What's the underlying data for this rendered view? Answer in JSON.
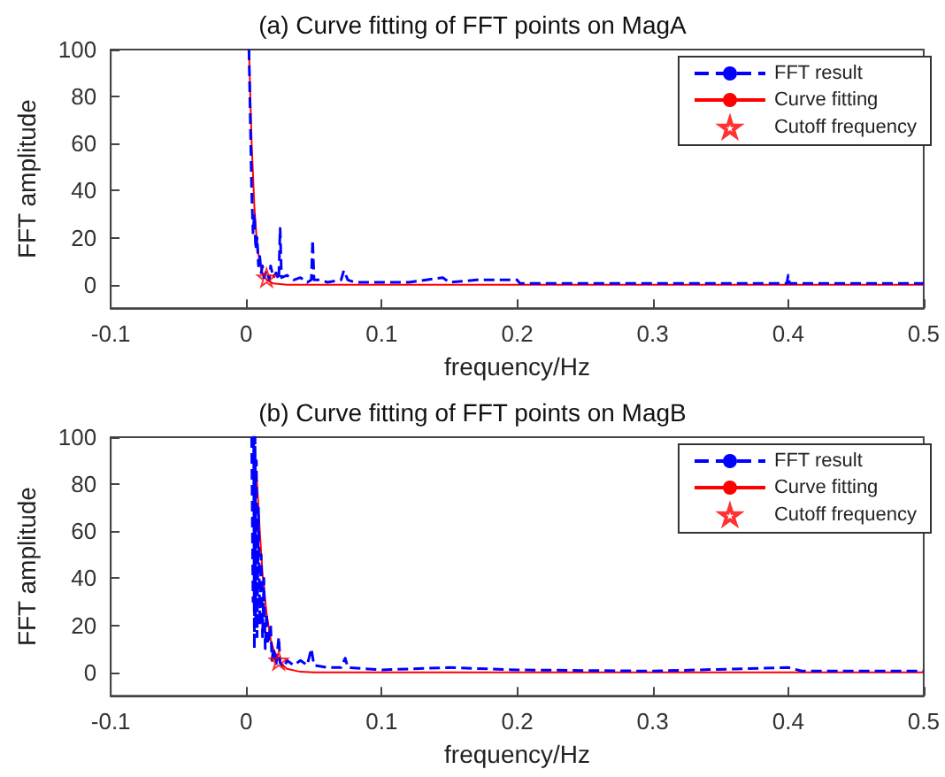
{
  "chart_data": [
    {
      "type": "line",
      "title": "(a) Curve fitting of FFT points on MagA",
      "xlabel": "frequency/Hz",
      "ylabel": "FFT amplitude",
      "xlim": [
        -0.1,
        0.5
      ],
      "xticks": [
        -0.1,
        0,
        0.1,
        0.2,
        0.3,
        0.4,
        {
          "value": 0.5,
          "label": "0.5"
        }
      ],
      "ylim": [
        -10,
        100
      ],
      "yticks": [
        0,
        20,
        40,
        60,
        80,
        100
      ],
      "grid": false,
      "legend": "top right",
      "series": [
        {
          "name": "FFT result",
          "color": "#0000ff",
          "line_style": "dashed",
          "marker": "none",
          "x": [
            0.002,
            0.003,
            0.004,
            0.005,
            0.006,
            0.007,
            0.008,
            0.009,
            0.01,
            0.011,
            0.012,
            0.013,
            0.015,
            0.017,
            0.018,
            0.02,
            0.022,
            0.024,
            0.025,
            0.026,
            0.03,
            0.035,
            0.04,
            0.045,
            0.048,
            0.049,
            0.05,
            0.055,
            0.06,
            0.07,
            0.072,
            0.075,
            0.08,
            0.1,
            0.12,
            0.145,
            0.15,
            0.17,
            0.2,
            0.202,
            0.25,
            0.3,
            0.35,
            0.399,
            0.4,
            0.401,
            0.45,
            0.5
          ],
          "values": [
            100,
            70,
            40,
            22,
            30,
            15,
            20,
            8,
            12,
            5,
            8,
            3,
            6,
            2,
            8,
            3,
            5,
            2,
            24,
            3,
            4,
            2,
            3,
            1,
            2,
            19,
            2,
            2,
            1,
            2,
            6,
            2,
            1,
            1,
            1,
            3,
            1,
            2,
            2,
            0.5,
            0.5,
            0.5,
            0.5,
            0.5,
            4,
            0.5,
            0.5,
            0.5
          ]
        },
        {
          "name": "Curve fitting",
          "color": "#ff0000",
          "line_style": "solid",
          "marker": "none",
          "x": [
            0.002,
            0.004,
            0.006,
            0.008,
            0.01,
            0.012,
            0.015,
            0.02,
            0.03,
            0.1,
            0.5
          ],
          "values": [
            100,
            60,
            33,
            17,
            9,
            5,
            2,
            0.5,
            0,
            0,
            0
          ]
        },
        {
          "name": "Cutoff frequency",
          "type": "scatter",
          "color": "#ff0000",
          "marker": "star",
          "x": [
            0.015
          ],
          "values": [
            3
          ]
        }
      ]
    },
    {
      "type": "line",
      "title": "(b) Curve fitting of FFT points on MagB",
      "xlabel": "frequency/Hz",
      "ylabel": "FFT amplitude",
      "xlim": [
        -0.1,
        0.5
      ],
      "xticks": [
        -0.1,
        0,
        0.1,
        0.2,
        0.3,
        0.4,
        {
          "value": 0.5,
          "label": "0.5"
        }
      ],
      "ylim": [
        -10,
        100
      ],
      "yticks": [
        0,
        20,
        40,
        60,
        80,
        100
      ],
      "grid": false,
      "legend": "top right",
      "series": [
        {
          "name": "FFT result",
          "color": "#0000ff",
          "line_style": "dashed",
          "marker": "none",
          "x": [
            0.004,
            0.005,
            0.0055,
            0.006,
            0.0065,
            0.007,
            0.0075,
            0.008,
            0.009,
            0.01,
            0.011,
            0.012,
            0.013,
            0.014,
            0.015,
            0.016,
            0.018,
            0.019,
            0.02,
            0.022,
            0.024,
            0.025,
            0.028,
            0.03,
            0.035,
            0.04,
            0.045,
            0.048,
            0.05,
            0.06,
            0.07,
            0.073,
            0.075,
            0.1,
            0.15,
            0.2,
            0.3,
            0.4,
            0.41,
            0.5
          ],
          "values": [
            100,
            30,
            100,
            10,
            100,
            20,
            90,
            15,
            70,
            20,
            50,
            15,
            40,
            10,
            25,
            12,
            20,
            5,
            10,
            3,
            15,
            4,
            2,
            5,
            3,
            5,
            3,
            10,
            3,
            2,
            2,
            6,
            2,
            1,
            2,
            1,
            0.5,
            2,
            0.5,
            0.5
          ]
        },
        {
          "name": "Curve fitting",
          "color": "#ff0000",
          "line_style": "solid",
          "marker": "none",
          "x": [
            0.005,
            0.008,
            0.01,
            0.012,
            0.015,
            0.018,
            0.02,
            0.025,
            0.03,
            0.04,
            0.05,
            0.5
          ],
          "values": [
            100,
            80,
            60,
            42,
            25,
            14,
            10,
            4,
            1.5,
            0.2,
            0,
            0
          ]
        },
        {
          "name": "Cutoff frequency",
          "type": "scatter",
          "color": "#ff0000",
          "marker": "star",
          "x": [
            0.024
          ],
          "values": [
            5
          ]
        }
      ]
    }
  ]
}
